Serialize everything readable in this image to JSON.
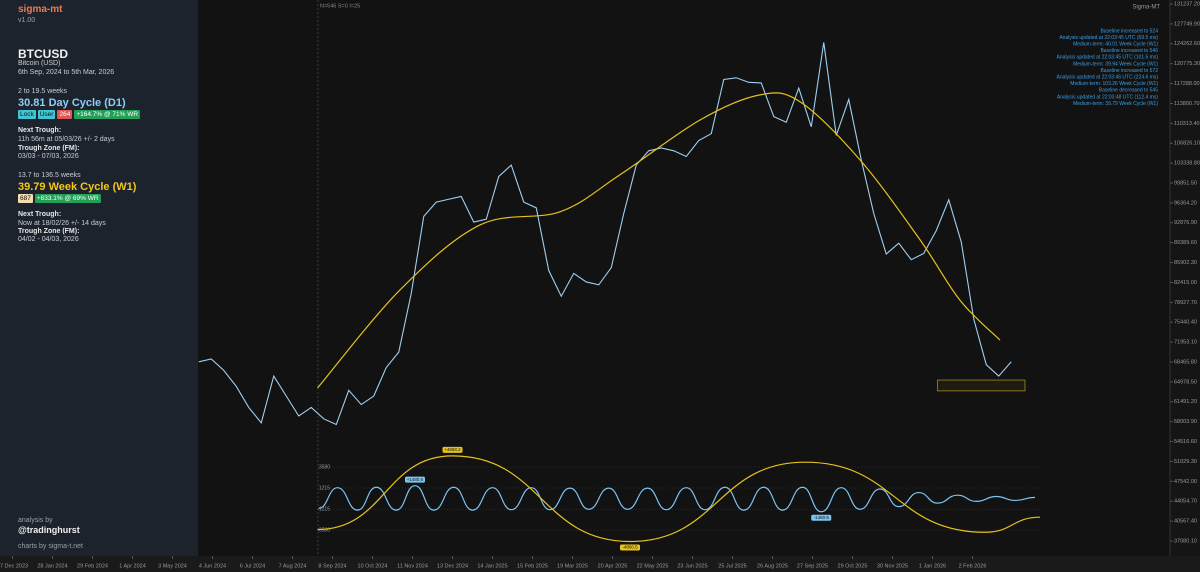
{
  "sidebar": {
    "brand": "sigma-mt",
    "version": "v1.00",
    "name": "Bitcoin (USD)",
    "range": "6th Sep, 2024 to 5th Mar, 2026",
    "cycles": [
      {
        "span": "2 to 19.5 weeks",
        "badges": [
          "Lock",
          "User",
          264,
          "+164.7% @ 71% WR"
        ],
        "next_trough_label": "Next Trough:",
        "next_trough": "11h 56m at 05/03/26 +/- 2 days",
        "zone_label": "Trough Zone (FM):",
        "zone": "03/03 - 07/03, 2026"
      },
      {
        "span": "13.7 to 136.5 weeks",
        "badges": [
          687,
          "+833.1% @ 69% WR"
        ],
        "next_trough_label": "Next Trough:",
        "next_trough": "Now at 18/02/26 +/- 14 days",
        "zone_label": "Trough Zone (FM):",
        "zone": "04/02 - 04/03, 2026"
      }
    ],
    "credit_label": "analysis by",
    "credit": "@tradinghurst",
    "footer": "charts by sigma-t.net"
  },
  "chart_data": [
    {
      "type": "line",
      "title": "Sigma-MT",
      "subtitle": "N=546 S=0 I=25",
      "xlim": [
        "2023-12-17",
        "2026-07-10"
      ],
      "xticks": [
        {
          "value": "2023-12-27",
          "label": "27 Dec 2023"
        },
        {
          "value": "2024-01-28",
          "label": "28 Jan 2024"
        },
        {
          "value": "2024-02-29",
          "label": "29 Feb 2024"
        },
        {
          "value": "2024-04-01",
          "label": "1 Apr 2024"
        },
        {
          "value": "2024-05-03",
          "label": "3 May 2024"
        },
        {
          "value": "2024-06-04",
          "label": "4 Jun 2024"
        },
        {
          "value": "2024-07-06",
          "label": "6 Jul 2024"
        },
        {
          "value": "2024-08-07",
          "label": "7 Aug 2024"
        },
        {
          "value": "2024-09-08",
          "label": "8 Sep 2024"
        },
        {
          "value": "2024-10-10",
          "label": "10 Oct 2024"
        },
        {
          "value": "2024-11-11",
          "label": "11 Nov 2024"
        },
        {
          "value": "2024-12-13",
          "label": "13 Dec 2024"
        },
        {
          "value": "2025-01-14",
          "label": "14 Jan 2025"
        },
        {
          "value": "2025-02-15",
          "label": "15 Feb 2025"
        },
        {
          "value": "2025-03-19",
          "label": "19 Mar 2025"
        },
        {
          "value": "2025-04-20",
          "label": "20 Apr 2025"
        },
        {
          "value": "2025-05-22",
          "label": "22 May 2025"
        },
        {
          "value": "2025-06-23",
          "label": "23 Jun 2025"
        },
        {
          "value": "2025-07-25",
          "label": "25 Jul 2025"
        },
        {
          "value": "2025-08-26",
          "label": "26 Aug 2025"
        },
        {
          "value": "2025-09-27",
          "label": "27 Sep 2025"
        },
        {
          "value": "2025-10-29",
          "label": "29 Oct 2025"
        },
        {
          "value": "2025-11-30",
          "label": "30 Nov 2025"
        },
        {
          "value": "2026-01-01",
          "label": "1 Jan 2026"
        },
        {
          "value": "2026-02-02",
          "label": "2 Feb 2026"
        }
      ],
      "ylim": [
        37080.1,
        131237.2
      ],
      "yticks": [
        {
          "value": 131237.2,
          "label": "131237.20"
        },
        {
          "value": 127749.9,
          "label": "127749.90"
        },
        {
          "value": 124262.6,
          "label": "124262.60"
        },
        {
          "value": 120775.3,
          "label": "120775.30"
        },
        {
          "value": 117288,
          "label": "117288.00"
        },
        {
          "value": 113800.7,
          "label": "113800.70"
        },
        {
          "value": 110313.4,
          "label": "110313.40"
        },
        {
          "value": 106826.1,
          "label": "106826.10"
        },
        {
          "value": 103338.8,
          "label": "103338.80"
        },
        {
          "value": 99851.5,
          "label": "99851.50"
        },
        {
          "value": 96364.2,
          "label": "96364.20"
        },
        {
          "value": 92876.9,
          "label": "92876.90"
        },
        {
          "value": 89389.6,
          "label": "89389.60"
        },
        {
          "value": 85902.3,
          "label": "85902.30"
        },
        {
          "value": 82415,
          "label": "82415.00"
        },
        {
          "value": 78927.7,
          "label": "78927.70"
        },
        {
          "value": 75440.4,
          "label": "75440.40"
        },
        {
          "value": 71953.1,
          "label": "71953.10"
        },
        {
          "value": 68465.8,
          "label": "68465.80"
        },
        {
          "value": 64978.5,
          "label": "64978.50"
        },
        {
          "value": 61491.2,
          "label": "61491.20"
        },
        {
          "value": 58003.9,
          "label": "58003.90"
        },
        {
          "value": 54516.6,
          "label": "54516.60"
        },
        {
          "value": 51029.3,
          "label": "51029.30"
        },
        {
          "value": 47542,
          "label": "47542.00"
        },
        {
          "value": 44054.7,
          "label": "44054.70"
        },
        {
          "value": 40567.4,
          "label": "40567.40"
        },
        {
          "value": 37080.1,
          "label": "37080.10"
        }
      ],
      "series": [
        {
          "name": "BTCUSD",
          "color": "#9fcff0",
          "x": [
            "2024-05-24",
            "2024-06-03",
            "2024-06-13",
            "2024-06-23",
            "2024-07-03",
            "2024-07-13",
            "2024-07-23",
            "2024-08-02",
            "2024-08-12",
            "2024-08-22",
            "2024-09-01",
            "2024-09-11",
            "2024-09-21",
            "2024-10-01",
            "2024-10-11",
            "2024-10-21",
            "2024-10-31",
            "2024-11-10",
            "2024-11-20",
            "2024-11-30",
            "2024-12-10",
            "2024-12-20",
            "2024-12-30",
            "2025-01-09",
            "2025-01-19",
            "2025-01-29",
            "2025-02-08",
            "2025-02-18",
            "2025-02-28",
            "2025-03-10",
            "2025-03-20",
            "2025-03-30",
            "2025-04-09",
            "2025-04-19",
            "2025-04-29",
            "2025-05-09",
            "2025-05-19",
            "2025-05-29",
            "2025-06-08",
            "2025-06-18",
            "2025-06-28",
            "2025-07-08",
            "2025-07-18",
            "2025-07-28",
            "2025-08-07",
            "2025-08-17",
            "2025-08-27",
            "2025-09-06",
            "2025-09-16",
            "2025-09-26",
            "2025-10-06",
            "2025-10-16",
            "2025-10-26",
            "2025-11-05",
            "2025-11-15",
            "2025-11-25",
            "2025-12-05",
            "2025-12-15",
            "2025-12-25",
            "2026-01-04",
            "2026-01-14",
            "2026-01-24",
            "2026-02-03",
            "2026-02-13",
            "2026-02-23",
            "2026-03-05"
          ],
          "values": [
            68500,
            69000,
            67000,
            64200,
            60500,
            57800,
            66000,
            62500,
            59000,
            60500,
            58500,
            57500,
            63500,
            61000,
            62500,
            67500,
            70200,
            80500,
            94000,
            96500,
            97000,
            97500,
            93000,
            93500,
            101000,
            103000,
            96500,
            95500,
            84500,
            80000,
            84000,
            82500,
            82000,
            85000,
            94500,
            103000,
            105500,
            106000,
            105500,
            104500,
            107300,
            108500,
            118000,
            118300,
            117500,
            117400,
            111500,
            110500,
            116500,
            109700,
            124500,
            108200,
            114500,
            103900,
            94500,
            87400,
            89300,
            86400,
            87500,
            91500,
            96900,
            89500,
            76000,
            68000,
            66000,
            68500
          ]
        },
        {
          "color": "#e6c21c",
          "x": [
            "2024-08-27",
            "2024-11-01",
            "2025-01-04",
            "2025-03-09",
            "2025-04-26",
            "2025-06-29",
            "2025-08-16",
            "2025-09-17",
            "2025-11-04",
            "2025-12-22",
            "2026-01-23",
            "2026-02-24"
          ],
          "values": [
            63900,
            81100,
            92500,
            94800,
            101300,
            110900,
            115300,
            114100,
            103900,
            89900,
            79300,
            72300
          ]
        }
      ],
      "trough_zone": {
        "x": [
          "2026-01-05",
          "2026-03-16"
        ],
        "values": [
          63400,
          65300
        ]
      },
      "annotations": [
        "Baseline increased to 524",
        "Analysis updated at 22:03:45 UTC (69.5 ms)",
        "Medium-term: 40.01 Week Cycle (W1)",
        "Baseline increased to 546",
        "Analysis updated at 22:03:45 UTC (101.5 ms)",
        "Medium-term: 39.94 Week Cycle (W1)",
        "Baseline increased to 572",
        "Analysis updated at 22:03:46 UTC (224.6 ms)",
        "Medium-term: 103.26 Week Cycle (W1)",
        "Baseline decreased to 545",
        "Analysis updated at 22:03:48 UTC (112.4 ms)",
        "Medium-term: 39.79 Week Cycle (W1)"
      ]
    },
    {
      "type": "line",
      "xlim": [
        "2023-12-17",
        "2026-07-10"
      ],
      "ylim": [
        -5600,
        6100
      ],
      "yticks": [
        3580,
        1215,
        -1215,
        -3580
      ],
      "grid": true,
      "series": [
        {
          "name": "30.81 Day Cycle (D1)",
          "color": "#7cc4f2",
          "x": [
            "2024-08-28",
            "2024-09-12",
            "2024-09-28",
            "2024-10-13",
            "2024-10-29",
            "2024-11-13",
            "2024-11-28",
            "2024-12-14",
            "2024-12-29",
            "2025-01-14",
            "2025-01-29",
            "2025-02-14",
            "2025-03-01",
            "2025-03-17",
            "2025-04-01",
            "2025-04-17",
            "2025-05-02",
            "2025-05-18",
            "2025-06-02",
            "2025-06-18",
            "2025-07-03",
            "2025-07-19",
            "2025-08-03",
            "2025-08-19",
            "2025-09-03",
            "2025-09-19",
            "2025-10-04",
            "2025-10-20",
            "2025-11-04",
            "2025-11-20",
            "2025-12-05",
            "2025-12-21",
            "2026-01-05",
            "2026-01-21",
            "2026-02-05",
            "2026-02-21",
            "2026-03-08",
            "2026-03-24"
          ],
          "values": [
            -1100,
            1250,
            -1300,
            1300,
            -1300,
            1480.6,
            -1300,
            1300,
            -1300,
            1250,
            -1250,
            1250,
            -1250,
            1200,
            -1200,
            1200,
            -1200,
            1200,
            -1250,
            1250,
            -1250,
            1300,
            -1300,
            1300,
            -1300,
            1300,
            -1480.6,
            1250,
            -1200,
            1100,
            -900,
            700,
            -500,
            400,
            -300,
            250,
            -200,
            150
          ],
          "value_labels": [
            null,
            null,
            null,
            null,
            null,
            "+1480.6",
            null,
            null,
            null,
            null,
            null,
            null,
            null,
            null,
            null,
            null,
            null,
            null,
            null,
            null,
            null,
            null,
            null,
            null,
            null,
            null,
            "-1480.6",
            null,
            null,
            null,
            null,
            null,
            null,
            null,
            null,
            null,
            null,
            null
          ]
        },
        {
          "name": "39.79 Week Cycle (W1)",
          "color": "#e6c21c",
          "x": [
            "2024-08-27",
            "2024-12-13",
            "2025-05-04",
            "2025-09-21",
            "2026-02-12",
            "2026-03-28"
          ],
          "values": [
            -3500,
            4868.2,
            -4860.5,
            4150,
            -3810,
            -2100
          ],
          "value_labels": [
            null,
            "+4868.2",
            "-4860.5",
            null,
            null,
            null
          ]
        }
      ]
    }
  ]
}
